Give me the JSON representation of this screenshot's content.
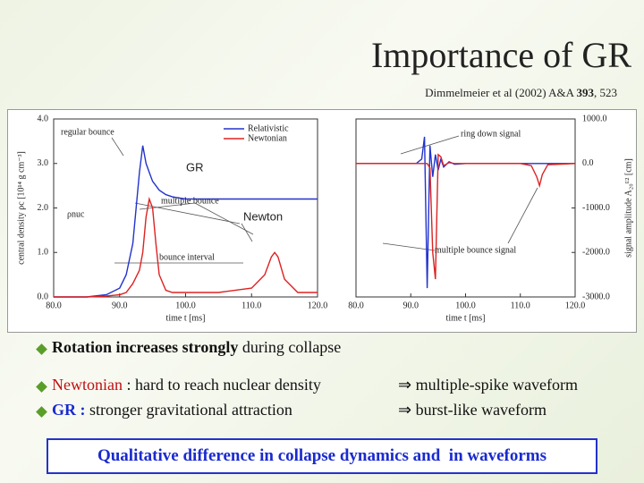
{
  "title": "Importance of GR",
  "citation": {
    "before": "Dimmelmeier et al (2002) A&A",
    "volume": "393",
    "after": ", 523"
  },
  "chart_data": [
    {
      "type": "line",
      "xlabel": "time t [ms]",
      "ylabel": "central density ρc [10¹⁴ g cm⁻³]",
      "x": [
        80,
        85,
        88,
        90,
        91,
        92,
        93,
        93.5,
        94,
        94.5,
        95,
        95.5,
        96,
        97,
        98,
        100,
        105,
        110,
        112,
        113,
        113.5,
        114,
        115,
        117,
        120
      ],
      "series": [
        {
          "name": "Relativistic",
          "color": "#2233cc",
          "values": [
            0,
            0,
            0.05,
            0.2,
            0.5,
            1.2,
            2.8,
            3.4,
            3.0,
            2.8,
            2.6,
            2.5,
            2.4,
            2.3,
            2.25,
            2.2,
            2.2,
            2.2,
            2.2,
            2.2,
            2.2,
            2.2,
            2.2,
            2.2,
            2.2
          ]
        },
        {
          "name": "Newtonian",
          "color": "#dd2222",
          "values": [
            0,
            0,
            0.02,
            0.05,
            0.1,
            0.3,
            0.6,
            1.0,
            1.8,
            2.2,
            2.0,
            1.2,
            0.5,
            0.15,
            0.1,
            0.1,
            0.1,
            0.2,
            0.5,
            0.9,
            1.0,
            0.9,
            0.4,
            0.1,
            0.1
          ]
        }
      ],
      "xlim": [
        80,
        120
      ],
      "xticks": [
        {
          "value": 80,
          "label": "80.0"
        },
        {
          "value": 90,
          "label": "90.0"
        },
        {
          "value": 100,
          "label": "100.0"
        },
        {
          "value": 110,
          "label": "110.0"
        },
        {
          "value": 120,
          "label": "120.0"
        }
      ],
      "ylim": [
        0,
        4
      ],
      "yticks": [
        {
          "value": 0,
          "label": "0.0"
        },
        {
          "value": 1,
          "label": "1.0"
        },
        {
          "value": 2,
          "label": "2.0"
        },
        {
          "value": 3,
          "label": "3.0"
        },
        {
          "value": 4,
          "label": "4.0"
        }
      ],
      "legend": "upper right",
      "annotations": [
        "regular bounce",
        "multiple bounce",
        "ρnuc",
        "bounce interval",
        "GR",
        "Newton"
      ]
    },
    {
      "type": "line",
      "xlabel": "time t [ms]",
      "ylabel": "signal amplitude A₂₀ᴱ² [cm]",
      "x": [
        80,
        90,
        91,
        92,
        92.5,
        93,
        93.5,
        94,
        94.5,
        95,
        95.5,
        96,
        97,
        98,
        100,
        105,
        110,
        112,
        113,
        113.5,
        114,
        115,
        120
      ],
      "series": [
        {
          "name": "Relativistic",
          "color": "#2233cc",
          "values": [
            0,
            0,
            0,
            100,
            600,
            -2800,
            400,
            -300,
            200,
            -150,
            100,
            -80,
            40,
            -20,
            0,
            0,
            0,
            0,
            0,
            0,
            0,
            0,
            0
          ]
        },
        {
          "name": "Newtonian",
          "color": "#dd2222",
          "values": [
            0,
            0,
            0,
            0,
            0,
            0,
            -100,
            -2000,
            -2600,
            200,
            150,
            -50,
            20,
            0,
            0,
            0,
            0,
            -50,
            -300,
            -500,
            -250,
            -30,
            0
          ]
        }
      ],
      "xlim": [
        80,
        120
      ],
      "xticks": [
        {
          "value": 80,
          "label": "80.0"
        },
        {
          "value": 90,
          "label": "90.0"
        },
        {
          "value": 100,
          "label": "100.0"
        },
        {
          "value": 110,
          "label": "110.0"
        },
        {
          "value": 120,
          "label": "120.0"
        }
      ],
      "ylim": [
        -3000,
        1000
      ],
      "yticks": [
        {
          "value": -3000,
          "label": "-3000.0"
        },
        {
          "value": -2000,
          "label": "-2000.0"
        },
        {
          "value": -1000,
          "label": "-1000.0"
        },
        {
          "value": 0,
          "label": "0.0"
        },
        {
          "value": 1000,
          "label": "1000.0"
        }
      ],
      "annotations": [
        "ring down signal",
        "multiple bounce signal"
      ]
    }
  ],
  "bullets": [
    {
      "lead": "Rotation increases strongly",
      "rest": " during collapse"
    },
    {
      "lead": "Newtonian",
      "rest": " : hard to reach nuclear density",
      "result": "⇒ multiple-spike waveform"
    },
    {
      "lead": "GR :",
      "rest": " stronger gravitational attraction",
      "result": "⇒ burst-like waveform"
    }
  ],
  "summary": "Qualitative difference in collapse dynamics and  in waveforms"
}
